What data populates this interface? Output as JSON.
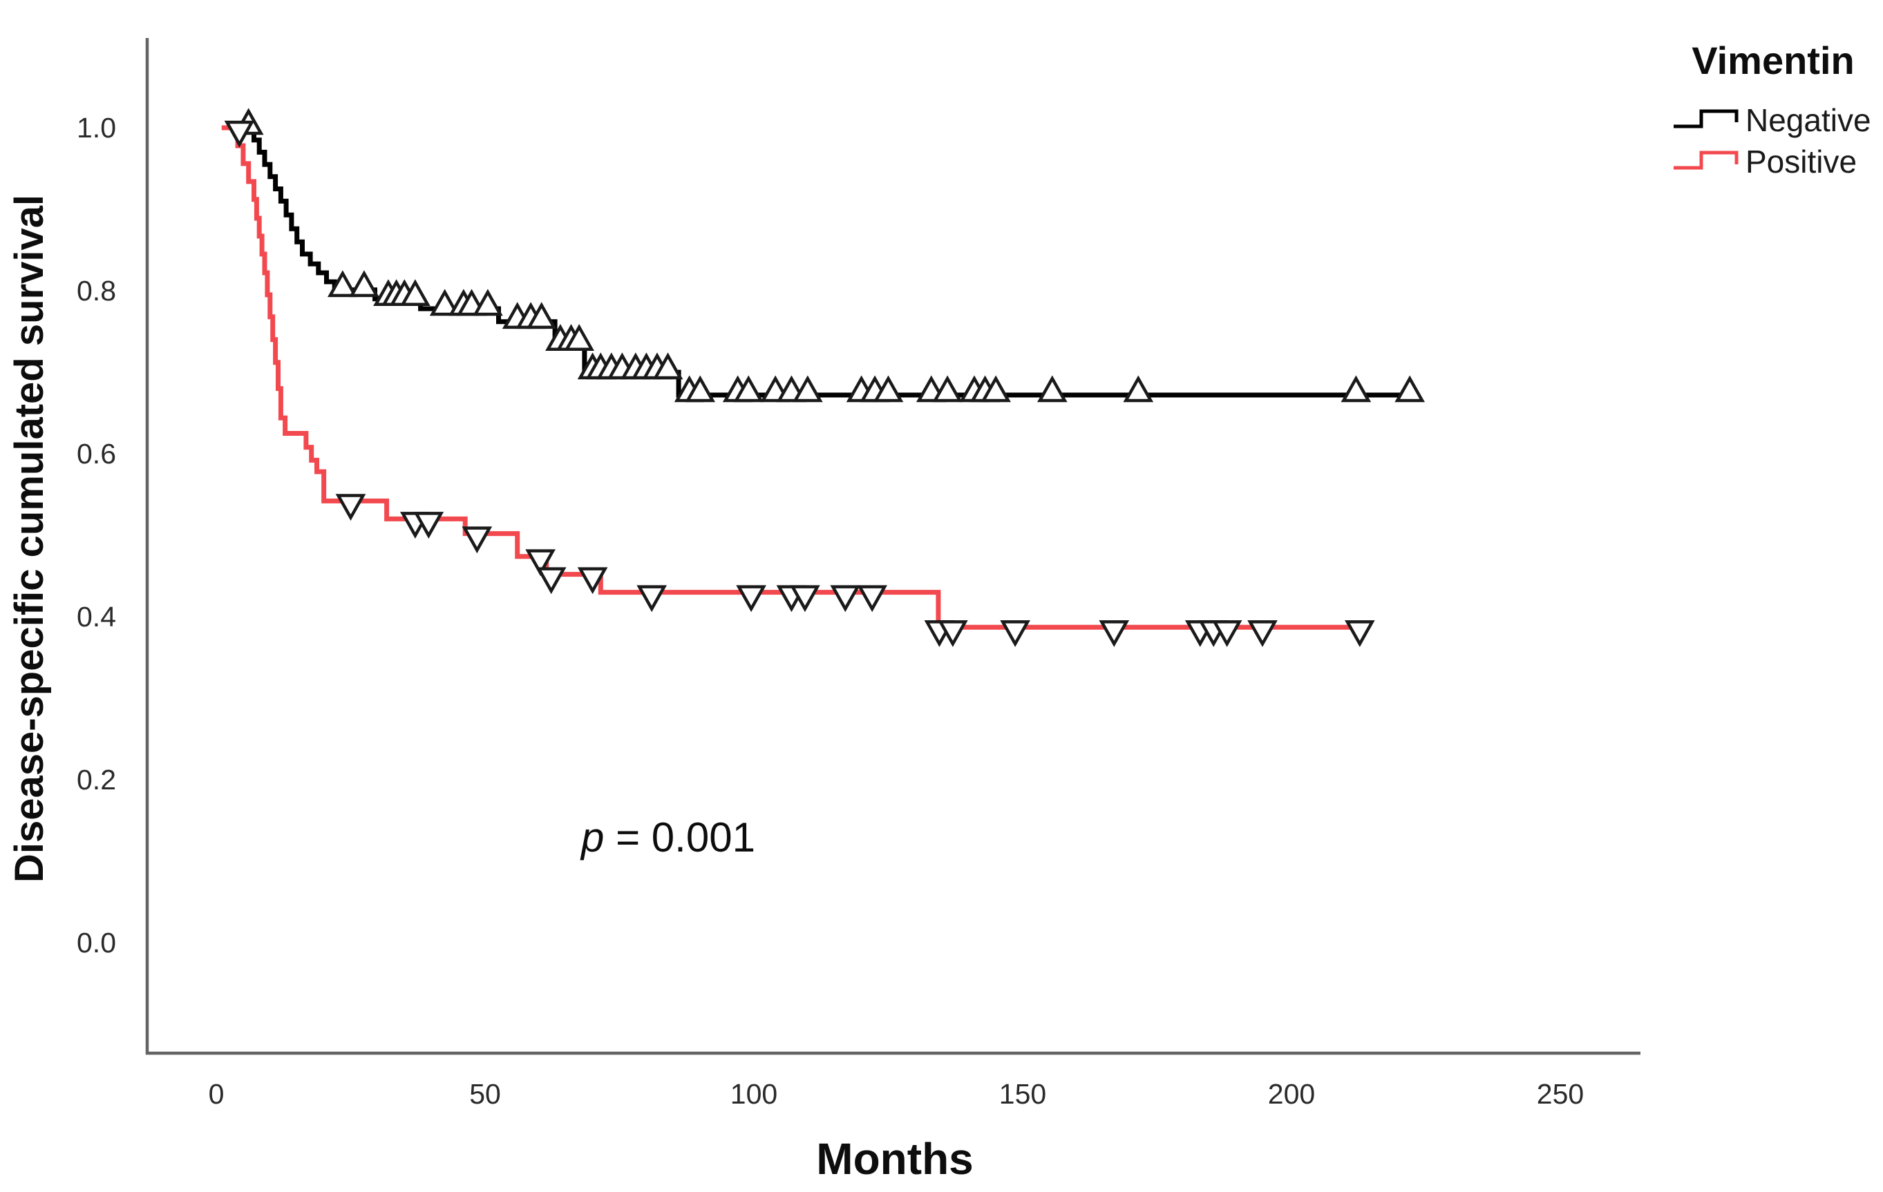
{
  "axes": {
    "x_label": "Months",
    "y_label": "Disease-specific cumulated survival"
  },
  "legend": {
    "title": "Vimentin",
    "items": [
      {
        "label": "Negative",
        "color": "#000000"
      },
      {
        "label": "Positive",
        "color": "#f2494f"
      }
    ]
  },
  "annotation": {
    "full": "p = 0.001",
    "p_symbol": "p",
    "p_rest": " = 0.001"
  },
  "colors": {
    "axis": "#646464",
    "tick_text": "#2a2a2a",
    "negative": "#000000",
    "positive": "#f2494f",
    "background": "#ffffff"
  },
  "chart_data": {
    "type": "line",
    "subtype": "kaplan_meier_step",
    "title": "",
    "xlabel": "Months",
    "ylabel": "Disease-specific cumulated survival",
    "x_ticks": [
      0,
      50,
      100,
      150,
      200,
      250
    ],
    "y_ticks": [
      "0.0",
      "0.2",
      "0.4",
      "0.6",
      "0.8",
      "1.0"
    ],
    "xlim": [
      -13,
      266
    ],
    "ylim": [
      -0.14,
      1.14
    ],
    "grid": false,
    "legend_position": "top-right",
    "annotation": {
      "text": "p = 0.001",
      "x_months": 84,
      "y_survival": 0.14
    },
    "series": [
      {
        "name": "Negative",
        "color": "#000000",
        "marker": "triangle-up",
        "steps": [
          [
            1.5,
            1.0
          ],
          [
            7,
            0.985
          ],
          [
            8,
            0.97
          ],
          [
            9,
            0.955
          ],
          [
            10,
            0.94
          ],
          [
            11,
            0.925
          ],
          [
            12,
            0.91
          ],
          [
            13,
            0.893
          ],
          [
            14,
            0.876
          ],
          [
            15,
            0.86
          ],
          [
            16,
            0.845
          ],
          [
            17.5,
            0.833
          ],
          [
            19,
            0.822
          ],
          [
            20.5,
            0.811
          ],
          [
            22,
            0.801
          ],
          [
            29.5,
            0.79
          ],
          [
            38,
            0.778
          ],
          [
            52.5,
            0.762
          ],
          [
            63,
            0.735
          ],
          [
            68.5,
            0.7
          ],
          [
            86,
            0.672
          ]
        ],
        "end_time": 223,
        "censors": [
          [
            6,
            1.0
          ],
          [
            23.5,
            0.801
          ],
          [
            27.5,
            0.801
          ],
          [
            32,
            0.79
          ],
          [
            33.5,
            0.79
          ],
          [
            35,
            0.79
          ],
          [
            37,
            0.79
          ],
          [
            42.5,
            0.778
          ],
          [
            46,
            0.778
          ],
          [
            47.5,
            0.778
          ],
          [
            50.5,
            0.778
          ],
          [
            56,
            0.762
          ],
          [
            58.5,
            0.762
          ],
          [
            60.5,
            0.762
          ],
          [
            64,
            0.735
          ],
          [
            66,
            0.735
          ],
          [
            67.5,
            0.735
          ],
          [
            70,
            0.7
          ],
          [
            71.5,
            0.7
          ],
          [
            73.5,
            0.7
          ],
          [
            75.5,
            0.7
          ],
          [
            78,
            0.7
          ],
          [
            80,
            0.7
          ],
          [
            82,
            0.7
          ],
          [
            84,
            0.7
          ],
          [
            88,
            0.672
          ],
          [
            90,
            0.672
          ],
          [
            97,
            0.672
          ],
          [
            99,
            0.672
          ],
          [
            104,
            0.672
          ],
          [
            107,
            0.672
          ],
          [
            110,
            0.672
          ],
          [
            120,
            0.672
          ],
          [
            122.5,
            0.672
          ],
          [
            125,
            0.672
          ],
          [
            133,
            0.672
          ],
          [
            136,
            0.672
          ],
          [
            141,
            0.672
          ],
          [
            143,
            0.672
          ],
          [
            145,
            0.672
          ],
          [
            155.5,
            0.672
          ],
          [
            171.5,
            0.672
          ],
          [
            212,
            0.672
          ],
          [
            222,
            0.672
          ]
        ]
      },
      {
        "name": "Positive",
        "color": "#f2494f",
        "marker": "triangle-down",
        "steps": [
          [
            1,
            1.0
          ],
          [
            4,
            0.978
          ],
          [
            5,
            0.956
          ],
          [
            6,
            0.934
          ],
          [
            7,
            0.912
          ],
          [
            7.5,
            0.889
          ],
          [
            8,
            0.867
          ],
          [
            8.5,
            0.845
          ],
          [
            9,
            0.822
          ],
          [
            9.5,
            0.795
          ],
          [
            10,
            0.768
          ],
          [
            10.5,
            0.74
          ],
          [
            11,
            0.712
          ],
          [
            11.5,
            0.68
          ],
          [
            12,
            0.644
          ],
          [
            12.8,
            0.625
          ],
          [
            16.7,
            0.608
          ],
          [
            17.7,
            0.592
          ],
          [
            18.7,
            0.578
          ],
          [
            20,
            0.542
          ],
          [
            31.7,
            0.52
          ],
          [
            46.3,
            0.502
          ],
          [
            56,
            0.474
          ],
          [
            61.4,
            0.452
          ],
          [
            71.5,
            0.43
          ],
          [
            134.3,
            0.387
          ]
        ],
        "end_time": 213,
        "censors": [
          [
            4.3,
            1.0
          ],
          [
            25,
            0.542
          ],
          [
            37,
            0.52
          ],
          [
            39.5,
            0.52
          ],
          [
            48.5,
            0.502
          ],
          [
            60.3,
            0.474
          ],
          [
            62.3,
            0.452
          ],
          [
            70,
            0.452
          ],
          [
            81,
            0.43
          ],
          [
            99.5,
            0.43
          ],
          [
            107,
            0.43
          ],
          [
            109.5,
            0.43
          ],
          [
            117,
            0.43
          ],
          [
            122,
            0.43
          ],
          [
            134.5,
            0.387
          ],
          [
            137,
            0.387
          ],
          [
            148.6,
            0.387
          ],
          [
            167,
            0.387
          ],
          [
            183,
            0.387
          ],
          [
            185.5,
            0.387
          ],
          [
            188,
            0.387
          ],
          [
            194.6,
            0.387
          ],
          [
            212.7,
            0.387
          ]
        ]
      }
    ]
  }
}
